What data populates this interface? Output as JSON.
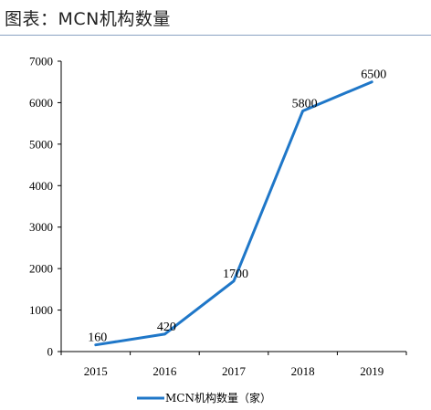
{
  "page": {
    "title": "图表：MCN机构数量"
  },
  "chart_data": {
    "type": "line",
    "title": "",
    "x": [
      "2015",
      "2016",
      "2017",
      "2018",
      "2019"
    ],
    "series": [
      {
        "name": "MCN机构数量（家）",
        "values": [
          160,
          420,
          1700,
          5800,
          6500
        ],
        "color": "#1f77c8"
      }
    ],
    "data_labels": [
      "160",
      "420",
      "1700",
      "5800",
      "6500"
    ],
    "y_ticks": [
      "0",
      "1000",
      "2000",
      "3000",
      "4000",
      "5000",
      "6000",
      "7000"
    ],
    "ylim": [
      0,
      7000
    ],
    "xlabel": "",
    "ylabel": "",
    "grid": false,
    "legend_position": "bottom-center"
  }
}
